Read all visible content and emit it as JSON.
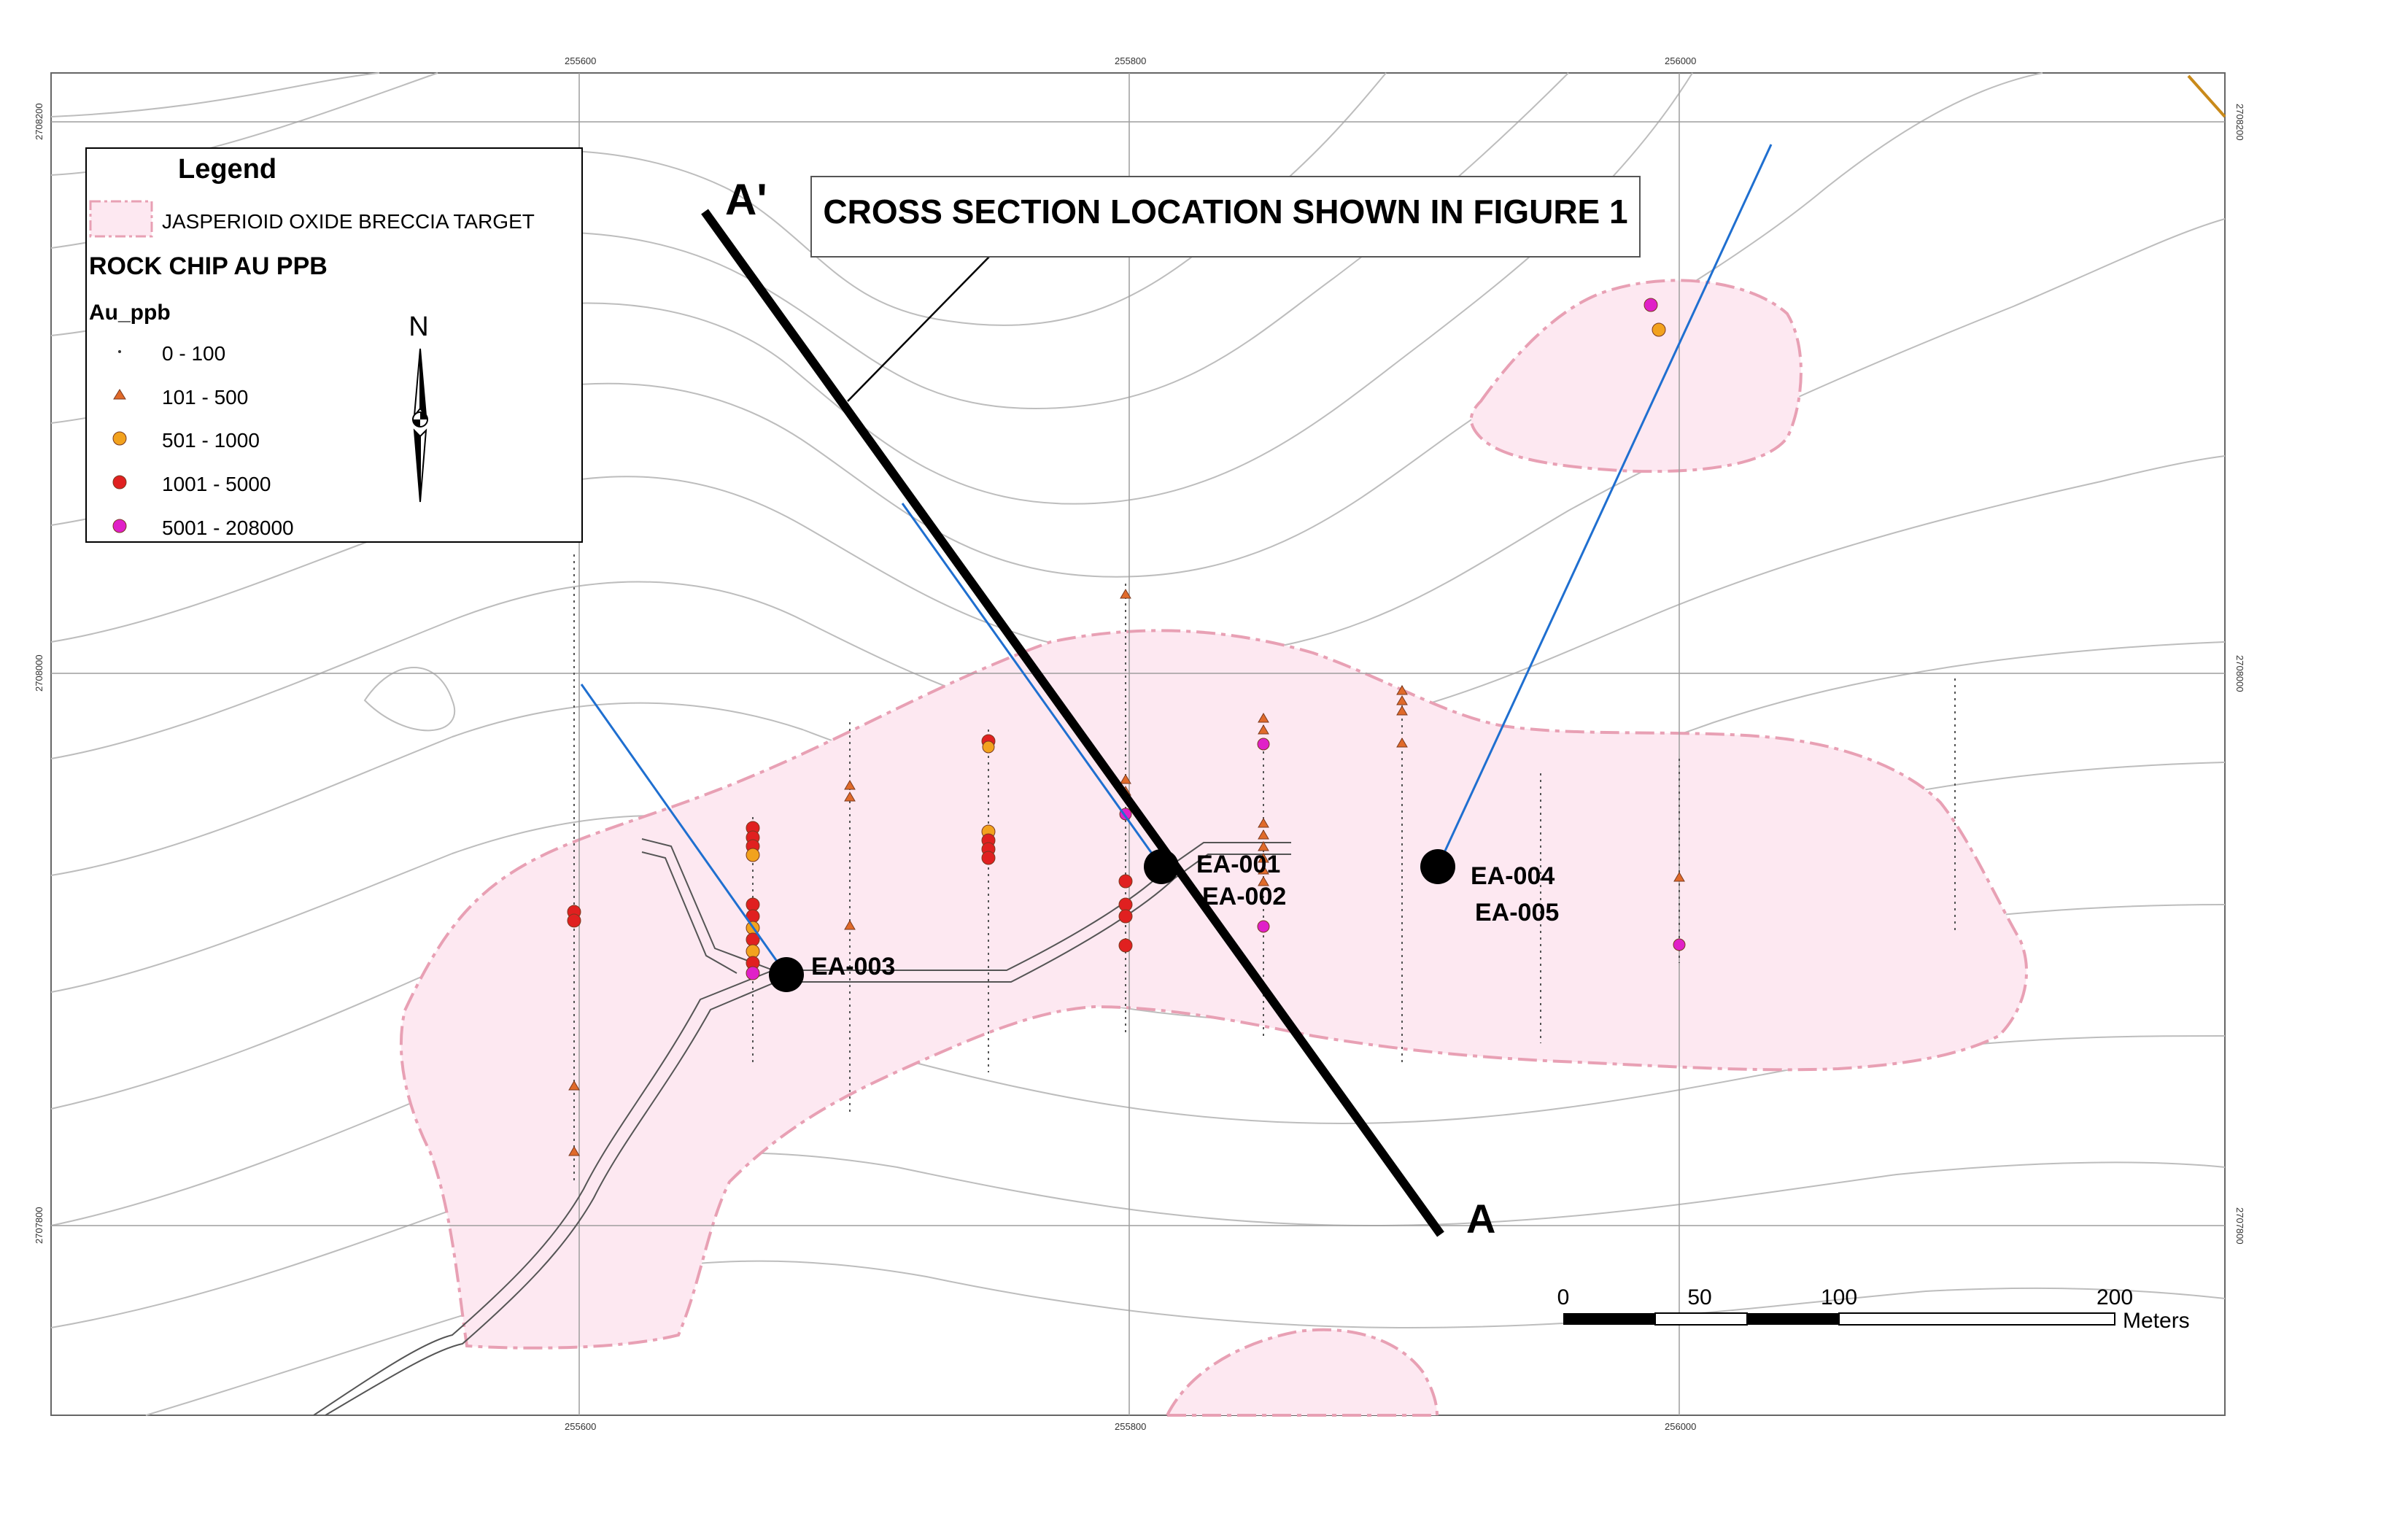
{
  "legend": {
    "title": "Legend",
    "target_label": "JASPERIOID OXIDE BRECCIA TARGET",
    "rock_chip_title": "ROCK CHIP AU PPB",
    "field_name": "Au_ppb",
    "classes": [
      {
        "label": "0 - 100",
        "symbol": "dot",
        "color": "#333333"
      },
      {
        "label": "101 - 500",
        "symbol": "triangle",
        "color": "#e06a2a"
      },
      {
        "label": "501 - 1000",
        "symbol": "circle",
        "color": "#f2a21e"
      },
      {
        "label": "1001 - 5000",
        "symbol": "circle",
        "color": "#e02020"
      },
      {
        "label": "5001 - 208000",
        "symbol": "circle",
        "color": "#e020c8"
      }
    ],
    "north_label": "N"
  },
  "grid": {
    "eastings": [
      "255600",
      "255800",
      "256000"
    ],
    "northings": [
      "2708200",
      "2708000",
      "2707800"
    ]
  },
  "callout": "CROSS SECTION LOCATION SHOWN IN FIGURE 1",
  "section_labels": {
    "start": "A'",
    "end": "A"
  },
  "drill_holes": {
    "ea001": "EA-001",
    "ea002": "EA-002",
    "ea003": "EA-003",
    "ea004": "EA-004",
    "ea005": "EA-005"
  },
  "scale_bar": {
    "ticks": [
      "0",
      "50",
      "100",
      "200"
    ],
    "unit": "Meters"
  },
  "colors": {
    "target_fill": "#fde8f1",
    "target_edge": "#e8a0b4",
    "contour": "#bdbdbd",
    "drill_trace": "#1f6fd0",
    "section_line": "#000000",
    "road": "#555555"
  }
}
